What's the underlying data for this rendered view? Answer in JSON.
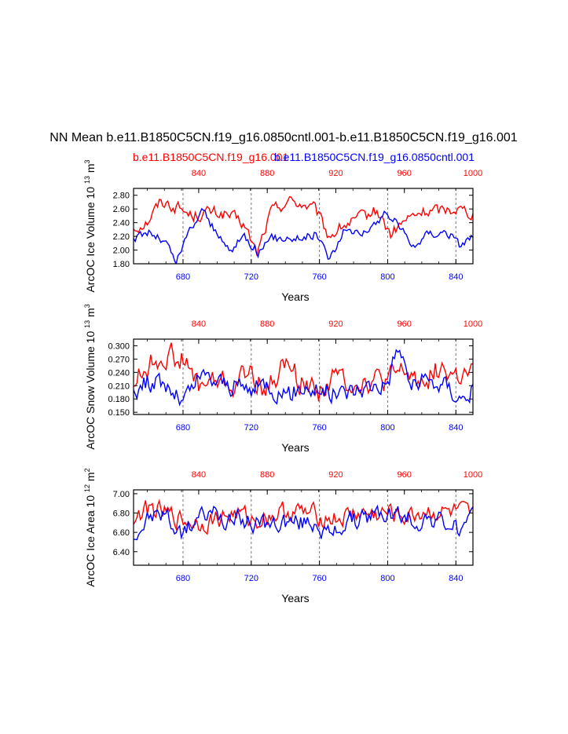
{
  "figure": {
    "title": "NN Mean b.e11.B1850C5CN.f19_g16.0850cntl.001-b.e11.B1850C5CN.f19_g16.001",
    "legend_red": "b.e11.B1850C5CN.f19_g16.001",
    "legend_blue": "b.e11.B1850C5CN.f19_g16.0850cntl.001",
    "colors": {
      "red": "#ff0000",
      "blue": "#0000ff"
    }
  },
  "chart_data": [
    {
      "type": "line",
      "name": "ice-volume",
      "ylabel": "ArcOC Ice Volume 10",
      "yunit_exp": "13",
      "yunit_tail": "m",
      "yunit_tail_exp": "3",
      "xlabel": "Years",
      "ylim": [
        1.8,
        2.9
      ],
      "yticks": [
        1.8,
        2.0,
        2.2,
        2.4,
        2.6,
        2.8
      ],
      "ytick_labels": [
        "1.80",
        "2.00",
        "2.20",
        "2.40",
        "2.60",
        "2.80"
      ],
      "xlim_bottom": [
        651,
        850
      ],
      "xticks_bottom": [
        680,
        720,
        760,
        800,
        840
      ],
      "xlim_top": [
        802,
        1000
      ],
      "xticks_top": [
        840,
        880,
        920,
        960,
        1000
      ],
      "vlines": [
        680,
        720,
        760,
        800,
        840
      ],
      "series": [
        {
          "name": "b.e11.B1850C5CN.f19_g16.001",
          "color": "#ff0000",
          "axis": "top",
          "start": 802,
          "amp": 0.2,
          "keypoints": [
            [
              802,
              2.32
            ],
            [
              810,
              2.42
            ],
            [
              818,
              2.72
            ],
            [
              828,
              2.62
            ],
            [
              836,
              2.5
            ],
            [
              846,
              2.55
            ],
            [
              856,
              2.52
            ],
            [
              866,
              2.38
            ],
            [
              874,
              1.95
            ],
            [
              882,
              2.55
            ],
            [
              892,
              2.72
            ],
            [
              900,
              2.68
            ],
            [
              908,
              2.58
            ],
            [
              916,
              2.2
            ],
            [
              924,
              2.35
            ],
            [
              934,
              2.45
            ],
            [
              944,
              2.58
            ],
            [
              952,
              2.22
            ],
            [
              960,
              2.42
            ],
            [
              970,
              2.55
            ],
            [
              980,
              2.58
            ],
            [
              990,
              2.62
            ],
            [
              1000,
              2.55
            ]
          ]
        },
        {
          "name": "b.e11.B1850C5CN.f19_g16.0850cntl.001",
          "color": "#0000ff",
          "axis": "bottom",
          "start": 651,
          "amp": 0.15,
          "keypoints": [
            [
              651,
              2.15
            ],
            [
              660,
              2.28
            ],
            [
              670,
              2.1
            ],
            [
              676,
              1.82
            ],
            [
              684,
              2.3
            ],
            [
              692,
              2.6
            ],
            [
              700,
              2.2
            ],
            [
              708,
              2.0
            ],
            [
              716,
              2.22
            ],
            [
              724,
              1.98
            ],
            [
              732,
              2.15
            ],
            [
              740,
              2.2
            ],
            [
              750,
              2.18
            ],
            [
              758,
              2.25
            ],
            [
              766,
              1.88
            ],
            [
              774,
              2.25
            ],
            [
              782,
              2.3
            ],
            [
              790,
              2.28
            ],
            [
              798,
              2.55
            ],
            [
              806,
              2.4
            ],
            [
              814,
              2.05
            ],
            [
              824,
              2.25
            ],
            [
              834,
              2.28
            ],
            [
              842,
              2.08
            ],
            [
              850,
              2.22
            ]
          ]
        }
      ]
    },
    {
      "type": "line",
      "name": "snow-volume",
      "ylabel": "ArcOC Snow Volume 10",
      "yunit_exp": "13",
      "yunit_tail": "m",
      "yunit_tail_exp": "3",
      "xlabel": "Years",
      "ylim": [
        0.145,
        0.315
      ],
      "yticks": [
        0.15,
        0.18,
        0.21,
        0.24,
        0.27,
        0.3
      ],
      "ytick_labels": [
        "0.150",
        "0.180",
        "0.210",
        "0.240",
        "0.270",
        "0.300"
      ],
      "xlim_bottom": [
        651,
        850
      ],
      "xticks_bottom": [
        680,
        720,
        760,
        800,
        840
      ],
      "xlim_top": [
        802,
        1000
      ],
      "xticks_top": [
        840,
        880,
        920,
        960,
        1000
      ],
      "vlines": [
        680,
        720,
        760,
        800,
        840
      ],
      "series": [
        {
          "name": "b.e11.B1850C5CN.f19_g16.001",
          "color": "#ff0000",
          "axis": "top",
          "start": 802,
          "amp": 0.06,
          "keypoints": [
            [
              802,
              0.22
            ],
            [
              812,
              0.26
            ],
            [
              820,
              0.28
            ],
            [
              830,
              0.27
            ],
            [
              840,
              0.21
            ],
            [
              850,
              0.22
            ],
            [
              860,
              0.21
            ],
            [
              870,
              0.24
            ],
            [
              880,
              0.2
            ],
            [
              890,
              0.26
            ],
            [
              900,
              0.22
            ],
            [
              910,
              0.2
            ],
            [
              920,
              0.23
            ],
            [
              930,
              0.22
            ],
            [
              940,
              0.22
            ],
            [
              950,
              0.22
            ],
            [
              960,
              0.24
            ],
            [
              970,
              0.22
            ],
            [
              980,
              0.25
            ],
            [
              990,
              0.23
            ],
            [
              1000,
              0.23
            ]
          ]
        },
        {
          "name": "b.e11.B1850C5CN.f19_g16.0850cntl.001",
          "color": "#0000ff",
          "axis": "bottom",
          "start": 651,
          "amp": 0.05,
          "keypoints": [
            [
              651,
              0.2
            ],
            [
              660,
              0.22
            ],
            [
              670,
              0.21
            ],
            [
              680,
              0.17
            ],
            [
              690,
              0.23
            ],
            [
              700,
              0.22
            ],
            [
              710,
              0.21
            ],
            [
              720,
              0.2
            ],
            [
              730,
              0.22
            ],
            [
              740,
              0.18
            ],
            [
              750,
              0.21
            ],
            [
              760,
              0.2
            ],
            [
              770,
              0.19
            ],
            [
              780,
              0.2
            ],
            [
              790,
              0.21
            ],
            [
              800,
              0.22
            ],
            [
              806,
              0.3
            ],
            [
              814,
              0.21
            ],
            [
              824,
              0.22
            ],
            [
              834,
              0.21
            ],
            [
              844,
              0.18
            ],
            [
              850,
              0.21
            ]
          ]
        }
      ]
    },
    {
      "type": "line",
      "name": "ice-area",
      "ylabel": "ArcOC Ice Area 10",
      "yunit_exp": "12",
      "yunit_tail": "m",
      "yunit_tail_exp": "2",
      "xlabel": "Years",
      "ylim": [
        6.26,
        7.04
      ],
      "yticks": [
        6.4,
        6.6,
        6.8,
        7.0
      ],
      "ytick_labels": [
        "6.40",
        "6.60",
        "6.80",
        "7.00"
      ],
      "xlim_bottom": [
        651,
        850
      ],
      "xticks_bottom": [
        680,
        720,
        760,
        800,
        840
      ],
      "xlim_top": [
        802,
        1000
      ],
      "xticks_top": [
        840,
        880,
        920,
        960,
        1000
      ],
      "vlines": [
        680,
        720,
        760,
        800,
        840
      ],
      "series": [
        {
          "name": "b.e11.B1850C5CN.f19_g16.001",
          "color": "#ff0000",
          "axis": "top",
          "start": 802,
          "amp": 0.22,
          "keypoints": [
            [
              802,
              6.75
            ],
            [
              812,
              6.85
            ],
            [
              822,
              6.78
            ],
            [
              832,
              6.72
            ],
            [
              842,
              6.7
            ],
            [
              852,
              6.75
            ],
            [
              862,
              6.8
            ],
            [
              872,
              6.72
            ],
            [
              882,
              6.78
            ],
            [
              892,
              6.82
            ],
            [
              902,
              6.8
            ],
            [
              912,
              6.76
            ],
            [
              922,
              6.74
            ],
            [
              932,
              6.8
            ],
            [
              942,
              6.78
            ],
            [
              952,
              6.8
            ],
            [
              962,
              6.76
            ],
            [
              972,
              6.82
            ],
            [
              982,
              6.8
            ],
            [
              992,
              6.8
            ],
            [
              1000,
              6.75
            ]
          ]
        },
        {
          "name": "b.e11.B1850C5CN.f19_g16.0850cntl.001",
          "color": "#0000ff",
          "axis": "bottom",
          "start": 651,
          "amp": 0.22,
          "keypoints": [
            [
              651,
              6.55
            ],
            [
              660,
              6.75
            ],
            [
              670,
              6.8
            ],
            [
              678,
              6.55
            ],
            [
              688,
              6.75
            ],
            [
              698,
              6.8
            ],
            [
              708,
              6.7
            ],
            [
              718,
              6.72
            ],
            [
              728,
              6.65
            ],
            [
              738,
              6.72
            ],
            [
              748,
              6.7
            ],
            [
              758,
              6.72
            ],
            [
              766,
              6.55
            ],
            [
              776,
              6.72
            ],
            [
              786,
              6.72
            ],
            [
              796,
              6.8
            ],
            [
              806,
              6.78
            ],
            [
              816,
              6.72
            ],
            [
              826,
              6.75
            ],
            [
              836,
              6.68
            ],
            [
              844,
              6.62
            ],
            [
              850,
              6.72
            ]
          ]
        }
      ]
    }
  ]
}
